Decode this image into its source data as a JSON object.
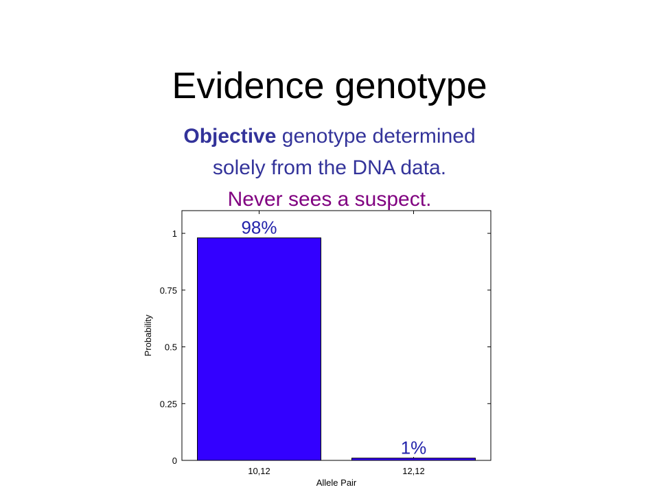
{
  "slide": {
    "title": "Evidence genotype",
    "subtitle_bold": "Objective",
    "subtitle_line1_rest": " genotype determined",
    "subtitle_line2": "solely from the DNA data.",
    "subtitle_line3": "Never sees a suspect.",
    "colors": {
      "title": "#000000",
      "subtitle": "#33339a",
      "emphasis": "#800080"
    }
  },
  "chart_data": {
    "type": "bar",
    "categories": [
      "10,12",
      "12,12"
    ],
    "values": [
      0.98,
      0.01
    ],
    "data_labels": [
      "98%",
      "1%"
    ],
    "xlabel": "Allele Pair",
    "ylabel": "Probability",
    "ylim": [
      0,
      1.1
    ],
    "yticks": [
      0,
      0.25,
      0.5,
      0.75,
      1
    ],
    "ytick_labels": [
      "0",
      "0.25",
      "0.5",
      "0.75",
      "1"
    ],
    "grid": false,
    "bar_color": "#3300ff",
    "label_color": "#2222aa"
  }
}
